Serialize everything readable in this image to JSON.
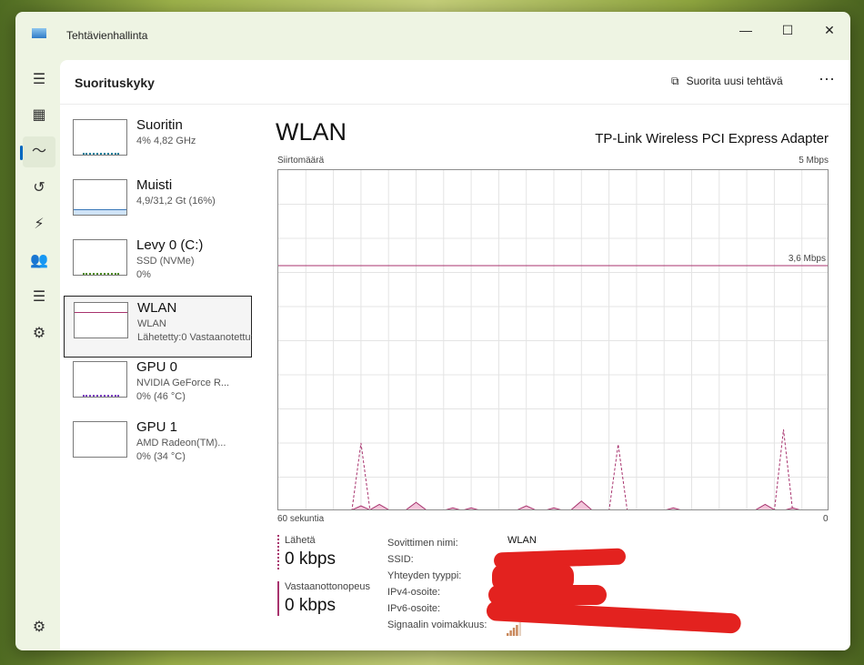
{
  "window": {
    "title": "Tehtävienhallinta",
    "minimize": "—",
    "maximize": "☐",
    "close": "✕"
  },
  "nav": [
    {
      "name": "hamburger",
      "glyph": "☰"
    },
    {
      "name": "processes",
      "glyph": "▦"
    },
    {
      "name": "performance",
      "glyph": "〜"
    },
    {
      "name": "app-history",
      "glyph": "↺"
    },
    {
      "name": "startup",
      "glyph": "⚡"
    },
    {
      "name": "users",
      "glyph": "👥"
    },
    {
      "name": "details",
      "glyph": "☰"
    },
    {
      "name": "services",
      "glyph": "⚙"
    }
  ],
  "settings_glyph": "⚙",
  "header": {
    "title": "Suorituskyky",
    "run_task": "Suorita uusi tehtävä",
    "more": "···"
  },
  "devices": [
    {
      "name": "Suoritin",
      "sub1": "4% 4,82 GHz",
      "sub2": "",
      "color": "#1e7f9b"
    },
    {
      "name": "Muisti",
      "sub1": "4,9/31,2 Gt (16%)",
      "sub2": "",
      "color": "#3a78b8"
    },
    {
      "name": "Levy 0 (C:)",
      "sub1": "SSD (NVMe)",
      "sub2": "0%",
      "color": "#4d8a21"
    },
    {
      "name": "WLAN",
      "sub1": "WLAN",
      "sub2": "Lähetetty:0 Vastaanotettu:0",
      "color": "#a8336e"
    },
    {
      "name": "GPU 0",
      "sub1": "NVIDIA GeForce R...",
      "sub2": "0% (46 °C)",
      "color": "#7a3fbf"
    },
    {
      "name": "GPU 1",
      "sub1": "AMD Radeon(TM)...",
      "sub2": "0% (34 °C)",
      "color": "#7a3fbf"
    }
  ],
  "main": {
    "title": "WLAN",
    "adapter": "TP-Link Wireless PCI Express Adapter"
  },
  "chart_data": {
    "type": "area",
    "ylabel": "Siirtomäärä",
    "ymax_label": "5 Mbps",
    "ylim": [
      0,
      5
    ],
    "xlabel_left": "60 sekuntia",
    "xlabel_right": "0",
    "xlim": [
      0,
      60
    ],
    "grid": true,
    "color": "#a8336e",
    "reference_line": {
      "value": 3.6,
      "label": "3,6 Mbps"
    },
    "series": [
      {
        "name": "Lähetä",
        "style": "filled",
        "points": [
          [
            9,
            0.08
          ],
          [
            11,
            0.1
          ],
          [
            15,
            0.13
          ],
          [
            19,
            0.05
          ],
          [
            21,
            0.05
          ],
          [
            27,
            0.08
          ],
          [
            30,
            0.05
          ],
          [
            33,
            0.15
          ],
          [
            43,
            0.05
          ],
          [
            53,
            0.1
          ],
          [
            56,
            0.05
          ]
        ]
      },
      {
        "name": "Vastaanottonopeus",
        "style": "dashed",
        "points": [
          [
            9,
            1.0
          ],
          [
            37,
            0.98
          ],
          [
            55,
            1.2
          ]
        ]
      }
    ]
  },
  "stats": {
    "send_label": "Lähetä",
    "send_value": "0 kbps",
    "recv_label": "Vastaanottonopeus",
    "recv_value": "0 kbps"
  },
  "props": {
    "adapter_name_label": "Sovittimen nimi:",
    "adapter_name": "WLAN",
    "ssid_label": "SSID:",
    "conn_type_label": "Yhteyden tyyppi:",
    "ipv4_label": "IPv4-osoite:",
    "ipv6_label": "IPv6-osoite:",
    "signal_label": "Signaalin voimakkuus:",
    "signal_level": 4
  }
}
